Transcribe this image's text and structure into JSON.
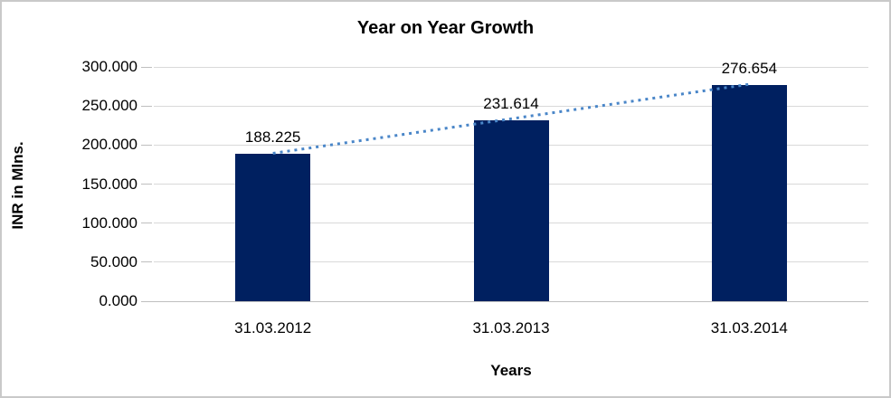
{
  "chart_data": {
    "type": "bar",
    "title": "Year on Year Growth",
    "xlabel": "Years",
    "ylabel": "INR in Mlns.",
    "categories": [
      "31.03.2012",
      "31.03.2013",
      "31.03.2014"
    ],
    "values": [
      188.225,
      231.614,
      276.654
    ],
    "data_labels": [
      "188.225",
      "231.614",
      "276.654"
    ],
    "ytick_values": [
      0,
      50,
      100,
      150,
      200,
      250,
      300
    ],
    "ytick_labels": [
      "0.000",
      "50.000",
      "100.000",
      "150.000",
      "200.000",
      "250.000",
      "300.000"
    ],
    "ylim": [
      0,
      300
    ],
    "grid": true,
    "legend": "none",
    "trendline": {
      "style": "dotted",
      "from_category": 0,
      "to_category": 2,
      "color": "#4A86C8"
    },
    "colors": {
      "bar": "#002060",
      "gridline": "#D9D9D9",
      "axis": "#BFBFBF",
      "text": "#000000",
      "border": "#C9C9C9",
      "background": "#FFFFFF"
    }
  }
}
